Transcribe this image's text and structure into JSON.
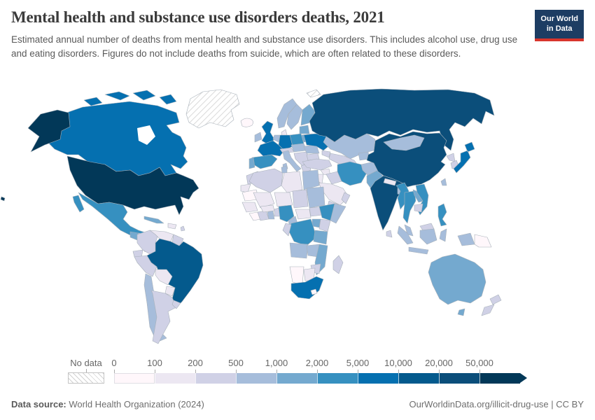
{
  "header": {
    "title": "Mental health and substance use disorders deaths, 2021",
    "subtitle": "Estimated annual number of deaths from mental health and substance use disorders. This includes alcohol use, drug use and eating disorders. Figures do not include deaths from suicide, which are often related to these disorders.",
    "logo": {
      "line1": "Our World",
      "line2": "in Data",
      "bg": "#1d3d63",
      "accent": "#d8352c"
    }
  },
  "legend": {
    "no_data_label": "No data",
    "bins": [
      {
        "label": "0",
        "color": "#fff7fb"
      },
      {
        "label": "100",
        "color": "#ece7f2"
      },
      {
        "label": "200",
        "color": "#d0d1e6"
      },
      {
        "label": "500",
        "color": "#a6bddb"
      },
      {
        "label": "1,000",
        "color": "#74a9cf"
      },
      {
        "label": "2,000",
        "color": "#3690c0"
      },
      {
        "label": "5,000",
        "color": "#0570b0"
      },
      {
        "label": "10,000",
        "color": "#045a8d"
      },
      {
        "label": "20,000",
        "color": "#0b4e7a"
      },
      {
        "label": "50,000",
        "color": "#023858"
      }
    ]
  },
  "footer": {
    "source_label": "Data source:",
    "source_value": " World Health Organization (2024)",
    "credit": "OurWorldinData.org/illicit-drug-use | CC BY"
  },
  "map": {
    "ocean": "#ffffff",
    "border": "#a8b1ba",
    "countries": {
      "greenland": "hatch",
      "svalbard": "hatch",
      "united-states": "#023858",
      "russia": "#0b4e7a",
      "china": "#0b4e7a",
      "india": "#0b4e7a",
      "brazil": "#045a8d",
      "canada": "#0570b0",
      "united-kingdom": "#0570b0",
      "france": "#0570b0",
      "germany": "#0570b0",
      "ukraine": "#0570b0",
      "japan": "#0570b0",
      "south-africa": "#0570b0",
      "mexico": "#3690c0",
      "spain": "#3690c0",
      "poland": "#3690c0",
      "iran": "#3690c0",
      "nigeria": "#3690c0",
      "ethiopia": "#3690c0",
      "dr-congo": "#3690c0",
      "myanmar": "#3690c0",
      "thailand": "#3690c0",
      "vietnam": "#3690c0",
      "philippines": "#3690c0",
      "pakistan": "#74a9cf",
      "portugal": "#74a9cf",
      "finland": "#74a9cf",
      "baltics": "#74a9cf",
      "belarus": "#74a9cf",
      "uganda": "#74a9cf",
      "tanzania": "#74a9cf",
      "mozambique": "#74a9cf",
      "laos": "#74a9cf",
      "guatemala": "#74a9cf",
      "cuba": "#74a9cf",
      "australia": "#74a9cf",
      "chile": "#a6bddb",
      "egypt": "#a6bddb",
      "sudan": "#a6bddb",
      "tunisia": "#a6bddb",
      "cameroon": "#a6bddb",
      "angola": "#a6bddb",
      "zambia": "#a6bddb",
      "somalia": "#a6bddb",
      "afghanistan": "#a6bddb",
      "bangladesh": "#a6bddb",
      "mongolia": "#a6bddb",
      "taiwan": "#a6bddb",
      "malaysia": "#a6bddb",
      "indonesia": "#a6bddb",
      "ireland": "#a6bddb",
      "norway": "#a6bddb",
      "sweden": "#a6bddb",
      "benelux": "#a6bddb",
      "italy": "#a6bddb",
      "romania": "#a6bddb",
      "central-europe": "#a6bddb",
      "ghana": "#a6bddb",
      "kyrgyzstan-tajikistan": "#a6bddb",
      "kazakhstan": "#a6bddb",
      "colombia": "#d0d1e6",
      "ecuador": "#d0d1e6",
      "peru": "#d0d1e6",
      "argentina": "#d0d1e6",
      "uruguay": "#d0d1e6",
      "morocco": "#d0d1e6",
      "algeria": "#d0d1e6",
      "chad": "#d0d1e6",
      "kenya": "#d0d1e6",
      "zimbabwe": "#d0d1e6",
      "congo-gabon": "#d0d1e6",
      "south-sudan": "#d0d1e6",
      "madagascar": "#d0d1e6",
      "new-zealand": "#d0d1e6",
      "sri-lanka": "#d0d1e6",
      "cambodia": "#d0d1e6",
      "turkey": "#d0d1e6",
      "iraq": "#d0d1e6",
      "caucasus": "#d0d1e6",
      "turkmenistan-uzbekistan": "#d0d1e6",
      "balkans": "#d0d1e6",
      "greece": "#d0d1e6",
      "bulgaria": "#d0d1e6",
      "nicaragua": "#d0d1e6",
      "caribbean": "#d0d1e6",
      "yemen": "#d0d1e6",
      "oman": "#d0d1e6",
      "north-korea": "#d0d1e6",
      "south-korea": "#d0d1e6",
      "malaysia-borneo": "#d0d1e6",
      "austria-switzerland": "#d0d1e6",
      "cote-divoire": "#d0d1e6",
      "togo-benin": "#d0d1e6",
      "venezuela": "#ece7f2",
      "bolivia": "#ece7f2",
      "paraguay": "#ece7f2",
      "honduras": "#ece7f2",
      "panama-costa-rica": "#ece7f2",
      "hispaniola": "#ece7f2",
      "libya": "#ece7f2",
      "mali": "#ece7f2",
      "niger": "#ece7f2",
      "senegal-guinea": "#ece7f2",
      "central-african-republic": "#ece7f2",
      "saudi-arabia": "#ece7f2",
      "syria": "#ece7f2",
      "jordan-israel": "#ece7f2",
      "western-sahara": "#ece7f2",
      "burkina-faso": "#ece7f2",
      "botswana": "#ece7f2",
      "denmark": "#ece7f2",
      "nepal": "#ece7f2",
      "iceland": "#fff7fb",
      "papua-new-guinea": "#fff7fb",
      "mauritania": "#fff7fb",
      "liberia-sierra-leone": "#fff7fb",
      "namibia": "#fff7fb",
      "lesotho": "#fff7fb"
    }
  },
  "chart_data": {
    "type": "choropleth",
    "title": "Mental health and substance use disorders deaths",
    "year": 2021,
    "unit": "estimated annual deaths",
    "no_data_label": "No data",
    "bin_edges": [
      0,
      100,
      200,
      500,
      1000,
      2000,
      5000,
      10000,
      20000,
      50000
    ],
    "bin_labels": [
      "0",
      "100",
      "200",
      "500",
      "1,000",
      "2,000",
      "5,000",
      "10,000",
      "20,000",
      "50,000"
    ],
    "legend_position": "bottom",
    "values": {
      "united-states": "50,000+",
      "russia": "20,000–50,000",
      "china": "20,000–50,000",
      "india": "20,000–50,000",
      "brazil": "10,000–20,000",
      "canada": "5,000–10,000",
      "united-kingdom": "5,000–10,000",
      "france": "5,000–10,000",
      "germany": "5,000–10,000",
      "ukraine": "5,000–10,000",
      "japan": "5,000–10,000",
      "south-africa": "5,000–10,000",
      "mexico": "2,000–5,000",
      "spain": "2,000–5,000",
      "poland": "2,000–5,000",
      "iran": "2,000–5,000",
      "nigeria": "2,000–5,000",
      "ethiopia": "2,000–5,000",
      "dr-congo": "2,000–5,000",
      "myanmar": "2,000–5,000",
      "thailand": "2,000–5,000",
      "vietnam": "2,000–5,000",
      "philippines": "2,000–5,000",
      "pakistan": "1,000–2,000",
      "portugal": "1,000–2,000",
      "finland": "1,000–2,000",
      "belarus": "1,000–2,000",
      "uganda": "1,000–2,000",
      "tanzania": "1,000–2,000",
      "mozambique": "1,000–2,000",
      "laos": "1,000–2,000",
      "guatemala": "1,000–2,000",
      "cuba": "1,000–2,000",
      "australia": "1,000–2,000",
      "chile": "500–1,000",
      "egypt": "500–1,000",
      "sudan": "500–1,000",
      "cameroon": "500–1,000",
      "angola": "500–1,000",
      "zambia": "500–1,000",
      "somalia": "500–1,000",
      "afghanistan": "500–1,000",
      "bangladesh": "500–1,000",
      "mongolia": "500–1,000",
      "malaysia": "500–1,000",
      "indonesia": "500–1,000",
      "ireland": "500–1,000",
      "norway": "500–1,000",
      "sweden": "500–1,000",
      "italy": "500–1,000",
      "romania": "500–1,000",
      "kazakhstan": "500–1,000",
      "colombia": "200–500",
      "peru": "200–500",
      "argentina": "200–500",
      "morocco": "200–500",
      "algeria": "200–500",
      "chad": "200–500",
      "kenya": "200–500",
      "turkey": "200–500",
      "iraq": "200–500",
      "new-zealand": "200–500",
      "cambodia": "200–500",
      "greece": "200–500",
      "north-korea": "200–500",
      "south-korea": "200–500",
      "madagascar": "200–500",
      "venezuela": "100–200",
      "bolivia": "100–200",
      "paraguay": "100–200",
      "libya": "100–200",
      "mali": "100–200",
      "niger": "100–200",
      "saudi-arabia": "100–200",
      "botswana": "100–200",
      "nepal": "100–200",
      "iceland": "0–100",
      "papua-new-guinea": "0–100",
      "mauritania": "0–100",
      "namibia": "0–100",
      "lesotho": "0–100",
      "greenland": "No data"
    }
  }
}
